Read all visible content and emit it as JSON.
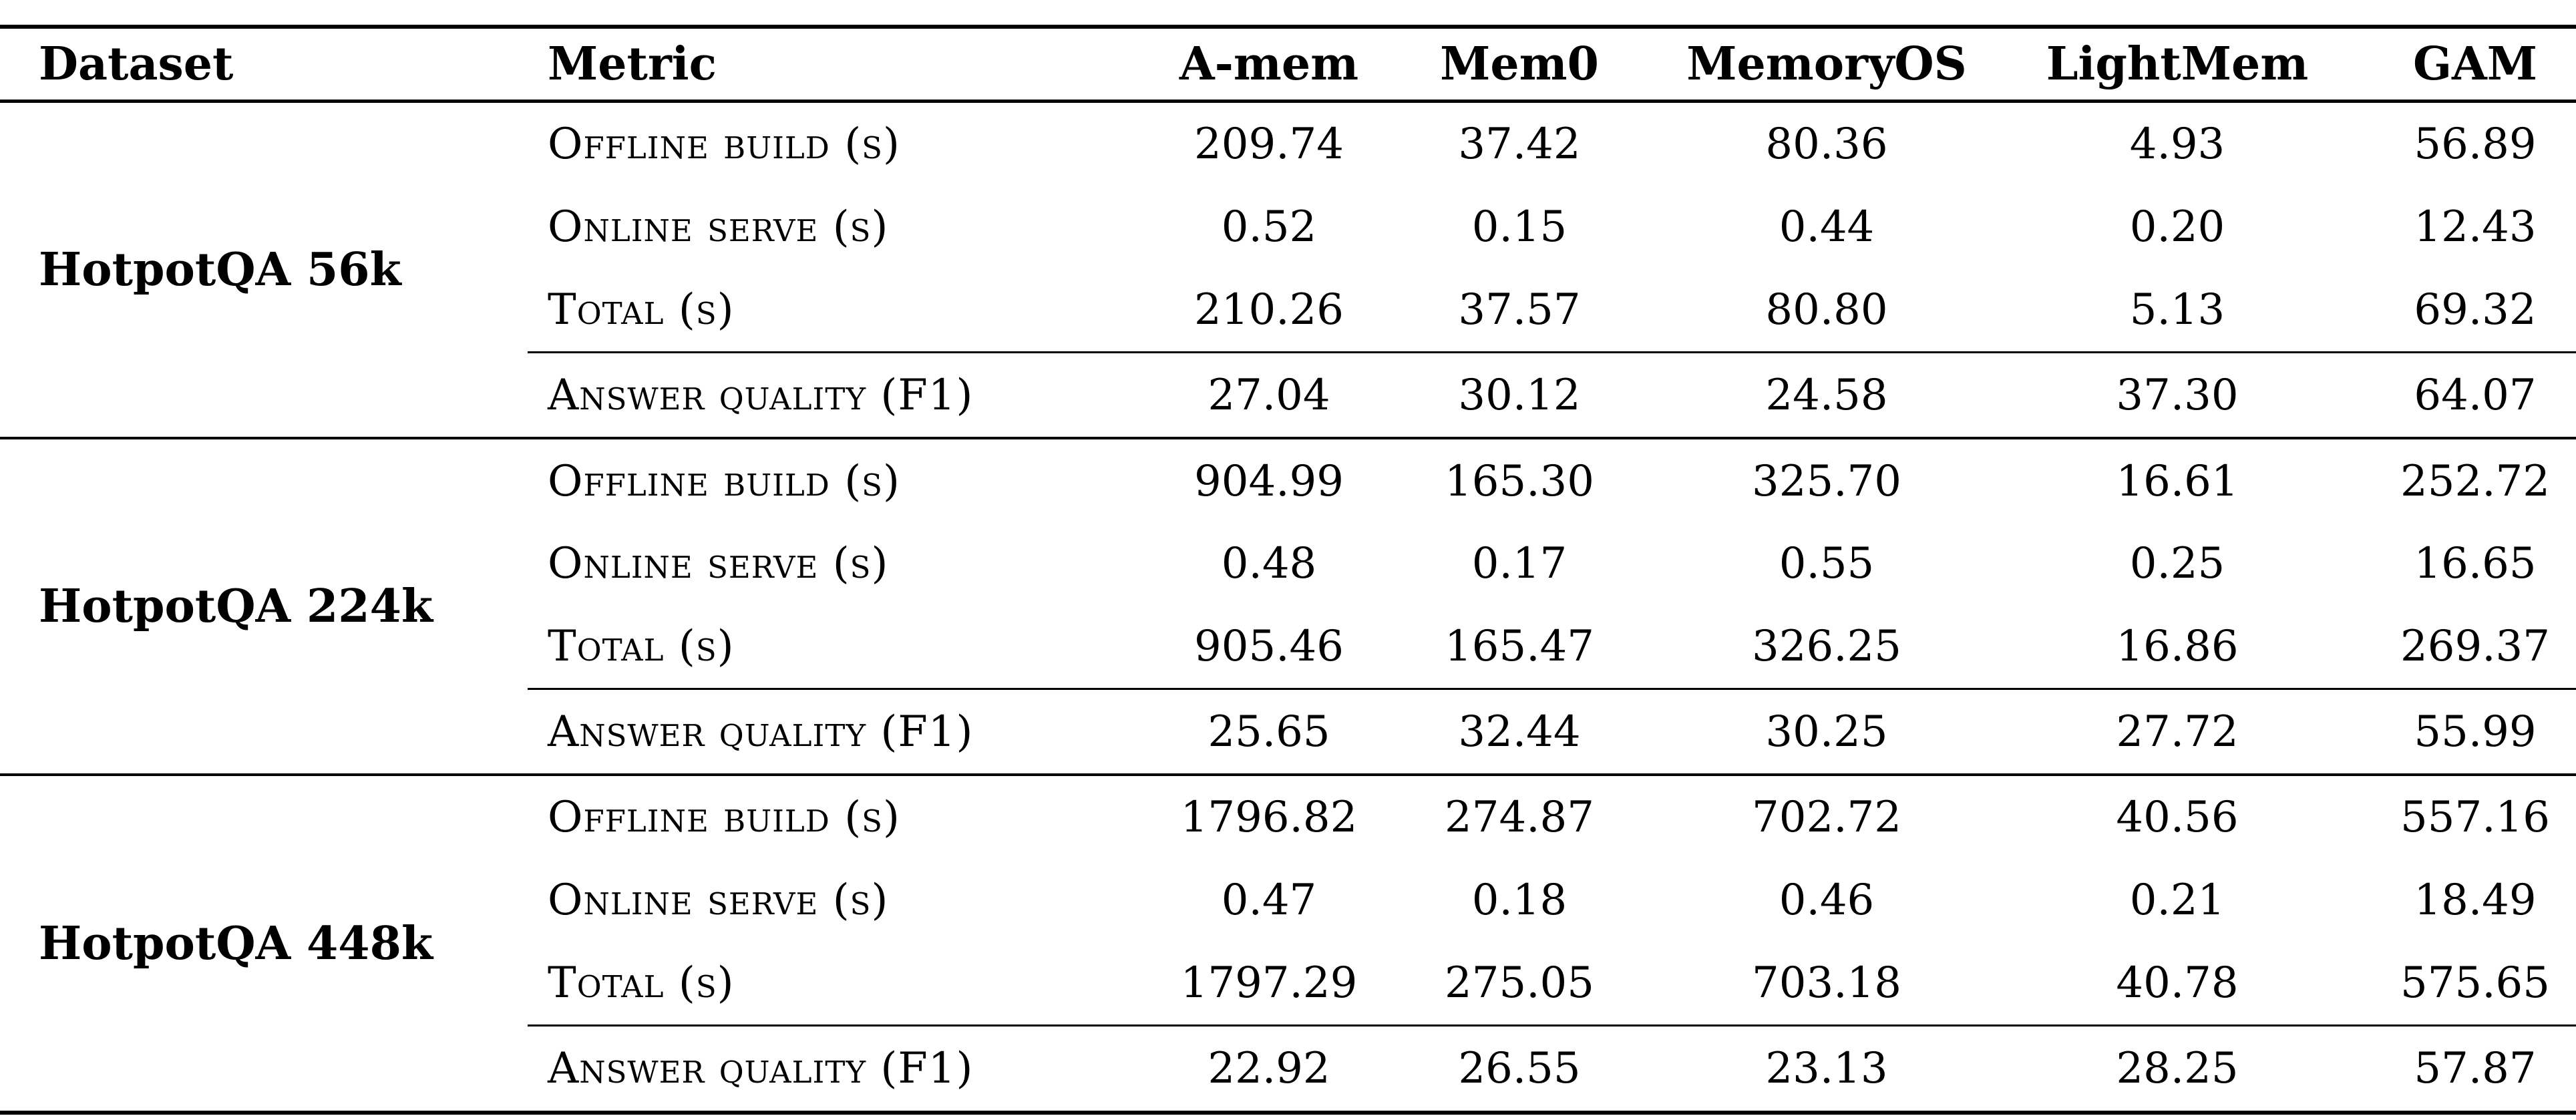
{
  "table": {
    "columns": [
      "Dataset",
      "Metric",
      "A-mem",
      "Mem0",
      "MemoryOS",
      "LightMem",
      "GAM"
    ],
    "groups": [
      {
        "dataset": "HotpotQA 56k",
        "rows": [
          {
            "metric": "Offline build (s)",
            "values": [
              "209.74",
              "37.42",
              "80.36",
              "4.93",
              "56.89"
            ]
          },
          {
            "metric": "Online serve (s)",
            "values": [
              "0.52",
              "0.15",
              "0.44",
              "0.20",
              "12.43"
            ]
          },
          {
            "metric": "Total (s)",
            "values": [
              "210.26",
              "37.57",
              "80.80",
              "5.13",
              "69.32"
            ]
          },
          {
            "metric": "Answer quality (F1)",
            "values": [
              "27.04",
              "30.12",
              "24.58",
              "37.30",
              "64.07"
            ]
          }
        ]
      },
      {
        "dataset": "HotpotQA 224k",
        "rows": [
          {
            "metric": "Offline build (s)",
            "values": [
              "904.99",
              "165.30",
              "325.70",
              "16.61",
              "252.72"
            ]
          },
          {
            "metric": "Online serve (s)",
            "values": [
              "0.48",
              "0.17",
              "0.55",
              "0.25",
              "16.65"
            ]
          },
          {
            "metric": "Total (s)",
            "values": [
              "905.46",
              "165.47",
              "326.25",
              "16.86",
              "269.37"
            ]
          },
          {
            "metric": "Answer quality (F1)",
            "values": [
              "25.65",
              "32.44",
              "30.25",
              "27.72",
              "55.99"
            ]
          }
        ]
      },
      {
        "dataset": "HotpotQA 448k",
        "rows": [
          {
            "metric": "Offline build (s)",
            "values": [
              "1796.82",
              "274.87",
              "702.72",
              "40.56",
              "557.16"
            ]
          },
          {
            "metric": "Online serve (s)",
            "values": [
              "0.47",
              "0.18",
              "0.46",
              "0.21",
              "18.49"
            ]
          },
          {
            "metric": "Total (s)",
            "values": [
              "1797.29",
              "275.05",
              "703.18",
              "40.78",
              "575.65"
            ]
          },
          {
            "metric": "Answer quality (F1)",
            "values": [
              "22.92",
              "26.55",
              "23.13",
              "28.25",
              "57.87"
            ]
          }
        ]
      }
    ]
  }
}
